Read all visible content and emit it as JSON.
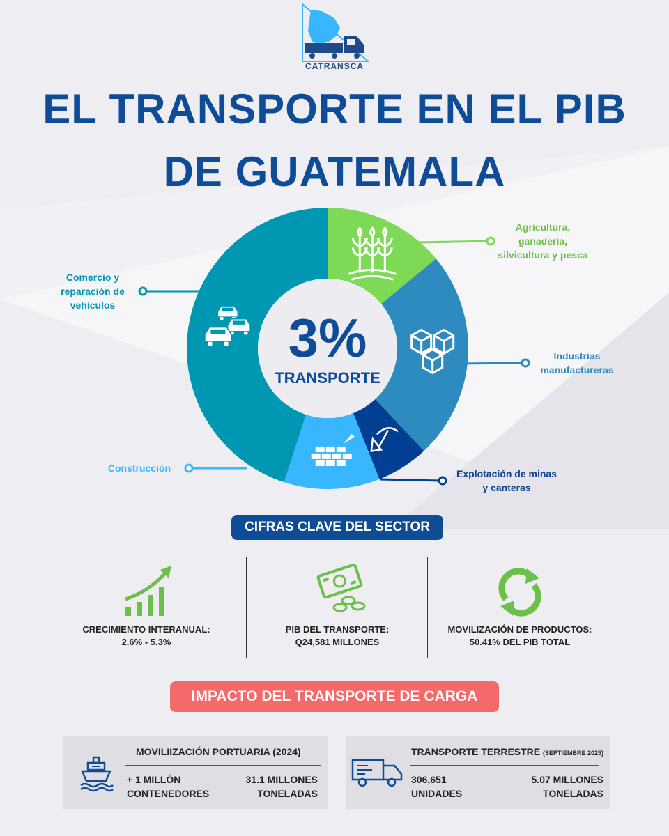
{
  "brand": {
    "name": "CATRANSCA"
  },
  "title": {
    "line1": "EL TRANSPORTE EN EL PIB",
    "line2": "DE GUATEMALA"
  },
  "colors": {
    "title": "#0f4c97",
    "agri": "#7ed957",
    "industry": "#2e8bc0",
    "mining": "#003f91",
    "construction": "#38b6ff",
    "commerce": "#0097b2",
    "red": "#f46a6a",
    "green": "#6cc04a"
  },
  "chart_data": {
    "type": "pie",
    "center_value": "3%",
    "center_label": "TRANSPORTE",
    "slices": [
      {
        "label": "Agricultura, ganadería, silvicultura y pesca",
        "lines": [
          "Agricultura,",
          "ganadería,",
          "silvicultura y pesca"
        ],
        "value": 14,
        "color": "#7ed957",
        "icon": "plant-icon"
      },
      {
        "label": "Industrias manufactureras",
        "lines": [
          "Industrias",
          "manufactureras"
        ],
        "value": 24,
        "color": "#2e8bc0",
        "icon": "boxes-icon"
      },
      {
        "label": "Explotación de minas y canteras",
        "lines": [
          "Explotación de minas",
          "y canteras"
        ],
        "value": 6,
        "color": "#003f91",
        "icon": "pickaxe-icon"
      },
      {
        "label": "Construcción",
        "lines": [
          "Construcción"
        ],
        "value": 11,
        "color": "#38b6ff",
        "icon": "bricks-icon"
      },
      {
        "label": "Comercio y reparación de vehículos",
        "lines": [
          "Comercio y",
          "reparación de",
          "vehículos"
        ],
        "value": 45,
        "color": "#0097b2",
        "icon": "cars-icon"
      }
    ]
  },
  "key_figures": {
    "heading": "CIFRAS CLAVE DEL SECTOR",
    "items": [
      {
        "line1": "CRECIMIENTO INTERANUAL:",
        "line2": "2.6% - 5.3%",
        "icon": "growth-chart-icon"
      },
      {
        "line1": "PIB DEL TRANSPORTE:",
        "line2": "Q24,581 MILLONES",
        "icon": "money-icon"
      },
      {
        "line1": "MOVILIZACIÓN DE PRODUCTOS:",
        "line2": "50.41% DEL PIB TOTAL",
        "icon": "recycle-icon"
      }
    ]
  },
  "impact": {
    "heading": "IMPACTO DEL TRANSPORTE DE CARGA",
    "port": {
      "title": "MOVILIIZACIÓN PORTUARIA (2024)",
      "icon": "ship-icon",
      "left_value": [
        "+ 1 MILLÓN",
        "CONTENEDORES"
      ],
      "right_value": [
        "31.1 MILLONES",
        "TONELADAS"
      ]
    },
    "land": {
      "title": "TRANSPORTE TERRESTRE",
      "title_note": "(SEPTIEMBRE 2025)",
      "icon": "truck-icon",
      "left_value": [
        "306,651",
        "UNIDADES"
      ],
      "right_value": [
        "5.07 MILLONES",
        "TONELADAS"
      ]
    }
  }
}
